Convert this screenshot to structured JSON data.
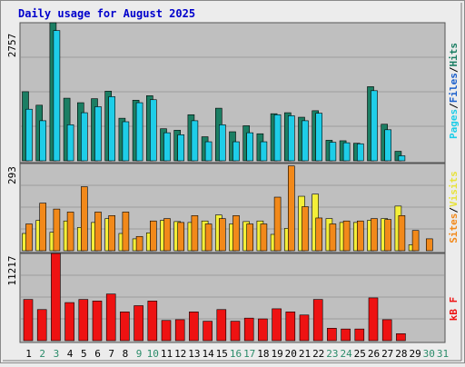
{
  "chart_data": [
    {
      "type": "bar",
      "title": "Daily usage for August 2025",
      "ymax_label": "2757",
      "ylim": [
        0,
        2757
      ],
      "legend": [
        "Pages",
        "Files",
        "Hits"
      ],
      "categories": [
        "1",
        "2",
        "3",
        "4",
        "5",
        "6",
        "7",
        "8",
        "9",
        "10",
        "11",
        "12",
        "13",
        "14",
        "15",
        "16",
        "17",
        "18",
        "19",
        "20",
        "21",
        "22",
        "23",
        "24",
        "25",
        "26",
        "27",
        "28",
        "29",
        "30",
        "31"
      ],
      "weekend_days": [
        "2",
        "3",
        "9",
        "10",
        "16",
        "17",
        "23",
        "24",
        "30",
        "31"
      ],
      "series": [
        {
          "name": "Hits",
          "values": [
            1380,
            1110,
            2757,
            1250,
            1160,
            1240,
            1390,
            850,
            1210,
            1300,
            640,
            610,
            920,
            480,
            1050,
            580,
            700,
            540,
            940,
            960,
            870,
            1000,
            410,
            400,
            350,
            1480,
            730,
            190,
            0,
            0,
            0
          ]
        },
        {
          "name": "Files",
          "values": [
            1030,
            800,
            2600,
            720,
            960,
            1080,
            1280,
            780,
            1160,
            1220,
            560,
            520,
            800,
            380,
            720,
            380,
            560,
            380,
            920,
            900,
            800,
            950,
            370,
            360,
            340,
            1400,
            620,
            100,
            0,
            0,
            0
          ]
        }
      ]
    },
    {
      "type": "bar",
      "ymax_label": "293",
      "ylim": [
        0,
        293
      ],
      "legend": [
        "Sites",
        "Visits"
      ],
      "categories": [
        "1",
        "2",
        "3",
        "4",
        "5",
        "6",
        "7",
        "8",
        "9",
        "10",
        "11",
        "12",
        "13",
        "14",
        "15",
        "16",
        "17",
        "18",
        "19",
        "20",
        "21",
        "22",
        "23",
        "24",
        "25",
        "26",
        "27",
        "28",
        "29",
        "30",
        "31"
      ],
      "series": [
        {
          "name": "Sites",
          "values": [
            90,
            160,
            140,
            130,
            215,
            130,
            118,
            130,
            48,
            100,
            108,
            95,
            118,
            90,
            108,
            118,
            90,
            90,
            180,
            285,
            148,
            110,
            90,
            100,
            100,
            108,
            105,
            118,
            68,
            40,
            0
          ]
        },
        {
          "name": "Visits",
          "values": [
            58,
            102,
            62,
            100,
            78,
            95,
            108,
            58,
            40,
            60,
            102,
            98,
            95,
            100,
            120,
            90,
            98,
            100,
            55,
            75,
            183,
            190,
            108,
            95,
            95,
            102,
            108,
            150,
            20,
            0,
            0
          ]
        }
      ]
    },
    {
      "type": "bar",
      "ymax_label": "11217",
      "ylim": [
        0,
        11217
      ],
      "legend": [
        "kB F"
      ],
      "categories": [
        "1",
        "2",
        "3",
        "4",
        "5",
        "6",
        "7",
        "8",
        "9",
        "10",
        "11",
        "12",
        "13",
        "14",
        "15",
        "16",
        "17",
        "18",
        "19",
        "20",
        "21",
        "22",
        "23",
        "24",
        "25",
        "26",
        "27",
        "28",
        "29",
        "30",
        "31"
      ],
      "series": [
        {
          "name": "kB F",
          "values": [
            5300,
            4000,
            11217,
            4900,
            5300,
            5100,
            6000,
            3700,
            4500,
            5100,
            2600,
            2700,
            3700,
            2500,
            4000,
            2500,
            2900,
            2800,
            4100,
            3700,
            3300,
            5300,
            1600,
            1500,
            1500,
            5500,
            2700,
            900,
            0,
            0,
            0
          ]
        }
      ]
    }
  ],
  "colors": {
    "hits": "#1b7e63",
    "files": "#1ecde8",
    "sites": "#f2891a",
    "visits": "#f4ef38",
    "kb": "#ee1212",
    "title": "#0000cc",
    "weekday_label": "#000000",
    "weekend_label": "#2b8c6a",
    "panel_bg": "#bfbfbf",
    "outer_bg": "#ececec",
    "gridline": "#9c9c9c"
  }
}
